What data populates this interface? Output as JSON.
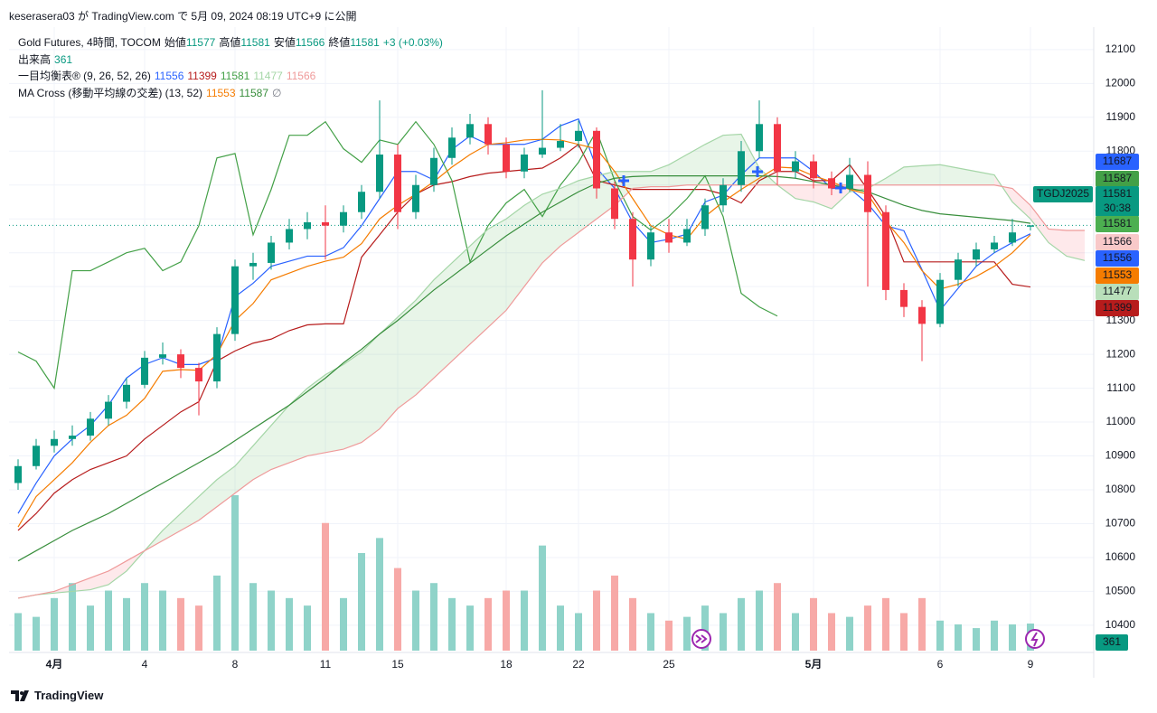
{
  "chart_data": {
    "type": "candlestick",
    "publish_note": "keserasera03 が TradingView.com で 5月 09, 2024 08:19 UTC+9 に公開",
    "title": "Gold Futures, 4時間, TOCOM",
    "ohlc_labels": [
      "始値",
      "高値",
      "安値",
      "終値"
    ],
    "change_label": "+3 (+0.03%)",
    "footer": "TradingView",
    "up_color": "#089981",
    "down_color": "#f23645",
    "grid": true,
    "ylim": [
      10325,
      12153
    ],
    "yticks": [
      10400,
      10500,
      10600,
      10700,
      10800,
      10900,
      11000,
      11100,
      11200,
      11300,
      11400,
      11500,
      11600,
      11700,
      11800,
      11900,
      12000,
      12100
    ],
    "categories": [
      null,
      null,
      "4月",
      null,
      null,
      null,
      null,
      "4",
      null,
      null,
      null,
      null,
      "8",
      null,
      null,
      null,
      null,
      "11",
      null,
      null,
      null,
      "15",
      null,
      null,
      null,
      null,
      null,
      "18",
      null,
      null,
      null,
      "22",
      null,
      null,
      null,
      null,
      "25",
      null,
      null,
      null,
      null,
      null,
      null,
      null,
      "5月",
      null,
      null,
      null,
      null,
      null,
      null,
      "6",
      null,
      null,
      null,
      null,
      "9",
      null,
      null,
      null
    ],
    "open": [
      10820,
      10870,
      10930,
      10950,
      10960,
      11010,
      11060,
      11110,
      11190,
      11200,
      11160,
      11120,
      11260,
      11460,
      11470,
      11530,
      11570,
      11590,
      11580,
      11620,
      11680,
      11790,
      11620,
      11700,
      11780,
      11840,
      11880,
      11820,
      11740,
      11790,
      11810,
      11830,
      11860,
      11690,
      11600,
      11480,
      11560,
      11530,
      11570,
      11640,
      11700,
      11800,
      11880,
      11740,
      11770,
      11720,
      11690,
      11730,
      11620,
      11390,
      11340,
      11290,
      11420,
      11480,
      11510,
      11530,
      11577,
      null,
      null,
      null
    ],
    "high": [
      10890,
      10950,
      10975,
      10990,
      11030,
      11080,
      11130,
      11210,
      11235,
      11215,
      11175,
      11280,
      11480,
      11500,
      11550,
      11600,
      11620,
      11640,
      11640,
      11700,
      11950,
      11820,
      11730,
      11810,
      11870,
      11910,
      11900,
      11840,
      11810,
      11980,
      11880,
      11890,
      11870,
      11710,
      11620,
      11580,
      11600,
      11600,
      11660,
      11720,
      11830,
      11950,
      11900,
      11800,
      11790,
      11740,
      11780,
      11770,
      11640,
      11410,
      11360,
      11440,
      11500,
      11530,
      11550,
      11600,
      11581,
      null,
      null,
      null
    ],
    "low": [
      10800,
      10860,
      10910,
      10930,
      10945,
      10990,
      11040,
      11100,
      11170,
      11130,
      11020,
      11100,
      11240,
      11420,
      11450,
      11510,
      11540,
      11480,
      11560,
      11600,
      11660,
      11570,
      11600,
      11680,
      11760,
      11820,
      11790,
      11720,
      11720,
      11780,
      11800,
      11810,
      11660,
      11570,
      11400,
      11460,
      11500,
      11520,
      11550,
      11620,
      11680,
      11780,
      11700,
      11720,
      11690,
      11670,
      11680,
      11400,
      11360,
      11310,
      11180,
      11280,
      11400,
      11460,
      11500,
      11520,
      11566,
      null,
      null,
      null
    ],
    "close": [
      10870,
      10930,
      10950,
      10960,
      11010,
      11060,
      11110,
      11190,
      11200,
      11160,
      11120,
      11260,
      11460,
      11470,
      11530,
      11570,
      11590,
      11580,
      11620,
      11680,
      11790,
      11620,
      11700,
      11780,
      11840,
      11880,
      11820,
      11740,
      11790,
      11810,
      11830,
      11860,
      11690,
      11600,
      11480,
      11560,
      11530,
      11570,
      11640,
      11700,
      11800,
      11880,
      11740,
      11770,
      11720,
      11690,
      11730,
      11620,
      11390,
      11340,
      11290,
      11420,
      11480,
      11510,
      11530,
      11560,
      11581,
      null,
      null,
      null
    ],
    "volume": {
      "name": "出来高",
      "up_color": "#8fd3c9",
      "down_color": "#f7a9a7",
      "values": [
        500,
        450,
        700,
        900,
        600,
        800,
        700,
        900,
        800,
        700,
        600,
        1000,
        2070,
        900,
        800,
        700,
        600,
        1700,
        700,
        1300,
        1500,
        1100,
        800,
        900,
        700,
        600,
        700,
        800,
        800,
        1400,
        600,
        500,
        800,
        1000,
        700,
        500,
        400,
        450,
        600,
        500,
        700,
        800,
        900,
        500,
        700,
        500,
        450,
        600,
        700,
        500,
        700,
        400,
        350,
        300,
        400,
        350,
        361,
        null,
        null,
        null
      ]
    },
    "indicators": [
      {
        "name": "一目均衡表® (9, 26, 52, 26)",
        "lines": [
          {
            "role": "conversion",
            "color": "#2962ff",
            "legend_value": 11556,
            "values": [
              10730,
              10820,
              10900,
              10950,
              10990,
              11050,
              11130,
              11170,
              11190,
              11170,
              11170,
              11190,
              11370,
              11410,
              11460,
              11475,
              11490,
              11490,
              11515,
              11580,
              11660,
              11740,
              11740,
              11715,
              11805,
              11845,
              11820,
              11820,
              11820,
              11835,
              11875,
              11895,
              11750,
              11690,
              11590,
              11530,
              11540,
              11555,
              11650,
              11670,
              11730,
              11780,
              11780,
              11780,
              11740,
              11690,
              11690,
              11645,
              11580,
              11565,
              11450,
              11330,
              11395,
              11460,
              11500,
              11530,
              11556,
              null,
              null,
              null
            ]
          },
          {
            "role": "base",
            "color": "#b71c1c",
            "legend_value": 11399,
            "values": [
              10680,
              10730,
              10790,
              10830,
              10860,
              10880,
              10900,
              10950,
              10990,
              11030,
              11060,
              11180,
              11210,
              11233,
              11245,
              11270,
              11287,
              11290,
              11290,
              11487,
              11553,
              11620,
              11673,
              11700,
              11710,
              11725,
              11735,
              11740,
              11745,
              11750,
              11780,
              11820,
              11713,
              11700,
              11687,
              11687,
              11687,
              11687,
              11687,
              11673,
              11647,
              11713,
              11740,
              11740,
              11713,
              11713,
              11760,
              11687,
              11607,
              11473,
              11473,
              11473,
              11473,
              11473,
              11473,
              11407,
              11399,
              null,
              null,
              null
            ]
          },
          {
            "role": "lagging",
            "color": "#43a047",
            "legend_value": 11581,
            "values": [
              11207,
              11180,
              11100,
              11447,
              11447,
              11473,
              11500,
              11513,
              11447,
              11473,
              11580,
              11780,
              11793,
              11553,
              11687,
              11847,
              11847,
              11887,
              11807,
              11767,
              11833,
              11820,
              11887,
              11820,
              11713,
              11473,
              11580,
              11647,
              11687,
              11607,
              11700,
              11767,
              11860,
              11713,
              11607,
              11567,
              11607,
              11660,
              11727,
              11607,
              11380,
              11340,
              11313,
              null,
              null,
              null,
              null,
              null,
              null,
              null,
              null,
              null,
              null,
              null,
              null,
              null,
              null,
              null,
              null,
              null
            ]
          },
          {
            "role": "span_a",
            "color": "#a5d6a7",
            "legend_value": 11477,
            "values": [
              10480,
              10490,
              10495,
              10500,
              10505,
              10520,
              10560,
              10620,
              10680,
              10730,
              10780,
              10830,
              10870,
              10930,
              10990,
              11050,
              11100,
              11140,
              11170,
              11207,
              11260,
              11310,
              11360,
              11420,
              11470,
              11520,
              11570,
              11600,
              11640,
              11673,
              11690,
              11713,
              11727,
              11740,
              11740,
              11740,
              11760,
              11790,
              11820,
              11847,
              11850,
              11750,
              11700,
              11660,
              11650,
              11630,
              11680,
              11690,
              11720,
              11753,
              11757,
              11760,
              11750,
              11740,
              11730,
              11650,
              11600,
              11530,
              11490,
              11477
            ]
          },
          {
            "role": "span_b",
            "color": "#ef9a9a",
            "legend_value": 11566,
            "values": [
              10480,
              10490,
              10500,
              10520,
              10540,
              10560,
              10590,
              10620,
              10650,
              10680,
              10710,
              10750,
              10790,
              10830,
              10860,
              10880,
              10900,
              10910,
              10920,
              10940,
              10980,
              11040,
              11080,
              11130,
              11180,
              11230,
              11280,
              11330,
              11400,
              11470,
              11520,
              11560,
              11600,
              11640,
              11690,
              11695,
              11695,
              11700,
              11700,
              11700,
              11700,
              11700,
              11700,
              11700,
              11700,
              11700,
              11700,
              11700,
              11700,
              11700,
              11700,
              11700,
              11700,
              11700,
              11700,
              11690,
              11640,
              11570,
              11566,
              11566
            ]
          }
        ]
      },
      {
        "name": "MA Cross (移動平均線の交差) (13, 52)",
        "suffix": "∅",
        "lines": [
          {
            "role": "ma_short",
            "color": "#f57c00",
            "legend_value": 11553,
            "values": [
              10690,
              10780,
              10830,
              10880,
              10940,
              10990,
              11020,
              11070,
              11150,
              11155,
              11153,
              11200,
              11300,
              11350,
              11420,
              11440,
              11460,
              11475,
              11487,
              11527,
              11600,
              11640,
              11673,
              11710,
              11753,
              11790,
              11820,
              11825,
              11833,
              11835,
              11833,
              11820,
              11807,
              11740,
              11660,
              11580,
              11553,
              11540,
              11607,
              11650,
              11687,
              11720,
              11753,
              11750,
              11727,
              11710,
              11687,
              11673,
              11593,
              11530,
              11447,
              11393,
              11407,
              11430,
              11460,
              11500,
              11553,
              null,
              null,
              null
            ]
          },
          {
            "role": "ma_long",
            "color": "#388e3c",
            "legend_value": 11587,
            "values": [
              10590,
              10620,
              10650,
              10680,
              10705,
              10730,
              10760,
              10790,
              10820,
              10850,
              10880,
              10910,
              10945,
              10980,
              11015,
              11050,
              11090,
              11130,
              11175,
              11215,
              11260,
              11300,
              11345,
              11390,
              11430,
              11470,
              11510,
              11550,
              11585,
              11620,
              11650,
              11680,
              11705,
              11720,
              11725,
              11727,
              11727,
              11727,
              11727,
              11727,
              11727,
              11727,
              11725,
              11720,
              11710,
              11700,
              11690,
              11680,
              11660,
              11640,
              11625,
              11615,
              11610,
              11605,
              11600,
              11595,
              11587,
              null,
              null,
              null
            ]
          }
        ]
      }
    ],
    "price_tags": [
      {
        "value": 11687,
        "color": "#2962ff",
        "text_color": "#ffffff"
      },
      {
        "value": 11587,
        "color": "#43a047",
        "text_color": "#ffffff"
      },
      {
        "label": "TGDJ2025",
        "value": 11581,
        "countdown": "30:38",
        "color": "#089981",
        "text_color": "#ffffff"
      },
      {
        "value": 11581,
        "color": "#4caf50",
        "text_color": "#ffffff"
      },
      {
        "value": 11566,
        "color": "#f8c9c9",
        "text_color": "#131722"
      },
      {
        "value": 11556,
        "color": "#2962ff",
        "text_color": "#ffffff"
      },
      {
        "value": 11553,
        "color": "#f57c00",
        "text_color": "#ffffff"
      },
      {
        "value": 11477,
        "color": "#b9dfba",
        "text_color": "#131722"
      },
      {
        "value": 11399,
        "color": "#b71c1c",
        "text_color": "#ffffff"
      }
    ]
  }
}
